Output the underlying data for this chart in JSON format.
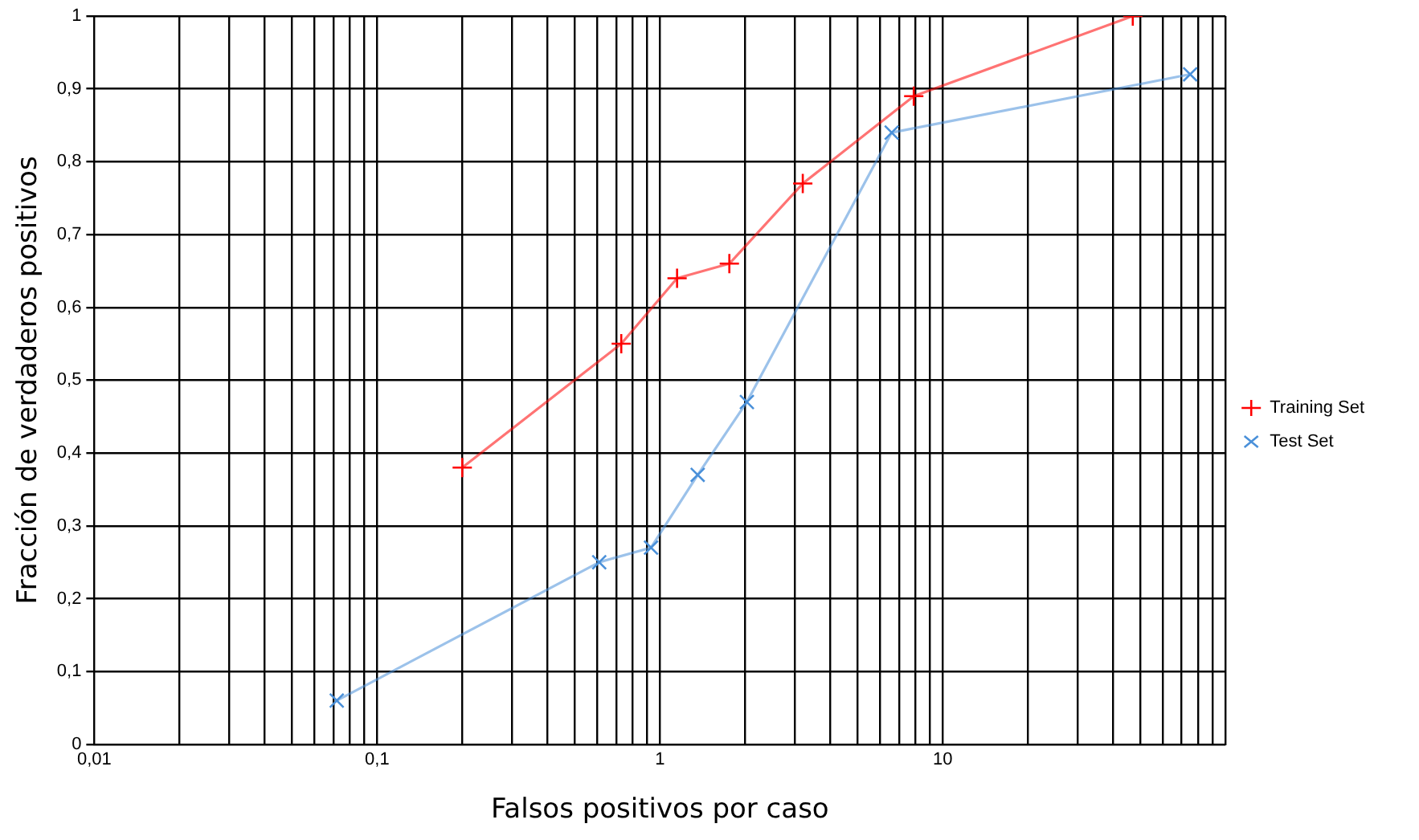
{
  "chart_data": {
    "type": "line",
    "xlabel": "Falsos positivos por caso",
    "ylabel": "Fracción de verdaderos positivos",
    "log": "x",
    "grid": true,
    "legend": "right",
    "xlim": [
      0.01,
      100
    ],
    "ylim": [
      0,
      1
    ],
    "xticks": [
      {
        "value": 0.01,
        "label": "0,01"
      },
      {
        "value": 0.02,
        "label": null
      },
      {
        "value": 0.03,
        "label": null
      },
      {
        "value": 0.04,
        "label": null
      },
      {
        "value": 0.05,
        "label": null
      },
      {
        "value": 0.06,
        "label": null
      },
      {
        "value": 0.07,
        "label": null
      },
      {
        "value": 0.08,
        "label": null
      },
      {
        "value": 0.09,
        "label": null
      },
      {
        "value": 0.1,
        "label": "0,1"
      },
      {
        "value": 0.2,
        "label": null
      },
      {
        "value": 0.3,
        "label": null
      },
      {
        "value": 0.4,
        "label": null
      },
      {
        "value": 0.5,
        "label": null
      },
      {
        "value": 0.6,
        "label": null
      },
      {
        "value": 0.7,
        "label": null
      },
      {
        "value": 0.8,
        "label": null
      },
      {
        "value": 0.9,
        "label": null
      },
      1,
      {
        "value": 2,
        "label": null
      },
      {
        "value": 3,
        "label": null
      },
      {
        "value": 4,
        "label": null
      },
      {
        "value": 5,
        "label": null
      },
      {
        "value": 6,
        "label": null
      },
      {
        "value": 7,
        "label": null
      },
      {
        "value": 8,
        "label": null
      },
      {
        "value": 9,
        "label": null
      },
      10,
      {
        "value": 20,
        "label": null
      },
      {
        "value": 30,
        "label": null
      },
      {
        "value": 40,
        "label": null
      },
      {
        "value": 50,
        "label": null
      },
      {
        "value": 60,
        "label": null
      },
      {
        "value": 70,
        "label": null
      },
      {
        "value": 80,
        "label": null
      },
      {
        "value": 90,
        "label": null
      },
      {
        "value": 100,
        "label": null
      }
    ],
    "yticks": [
      0,
      {
        "value": 0.1,
        "label": "0,1"
      },
      {
        "value": 0.2,
        "label": "0,2"
      },
      {
        "value": 0.3,
        "label": "0,3"
      },
      {
        "value": 0.4,
        "label": "0,4"
      },
      {
        "value": 0.5,
        "label": "0,5"
      },
      {
        "value": 0.6,
        "label": "0,6"
      },
      {
        "value": 0.7,
        "label": "0,7"
      },
      {
        "value": 0.8,
        "label": "0,8"
      },
      {
        "value": 0.9,
        "label": "0,9"
      },
      1
    ],
    "series": [
      {
        "name": "Training Set",
        "color": "#ff0000",
        "marker": "cross",
        "x": [
          0.2,
          0.73,
          1.15,
          1.76,
          3.2,
          7.9,
          47
        ],
        "values": [
          0.38,
          0.55,
          0.64,
          0.66,
          0.77,
          0.89,
          1.0
        ]
      },
      {
        "name": "Test Set",
        "color": "#4a90d9",
        "marker": "x",
        "x": [
          0.072,
          0.61,
          0.93,
          1.36,
          2.03,
          6.6,
          75
        ],
        "values": [
          0.06,
          0.25,
          0.27,
          0.37,
          0.47,
          0.84,
          0.92
        ]
      }
    ]
  }
}
